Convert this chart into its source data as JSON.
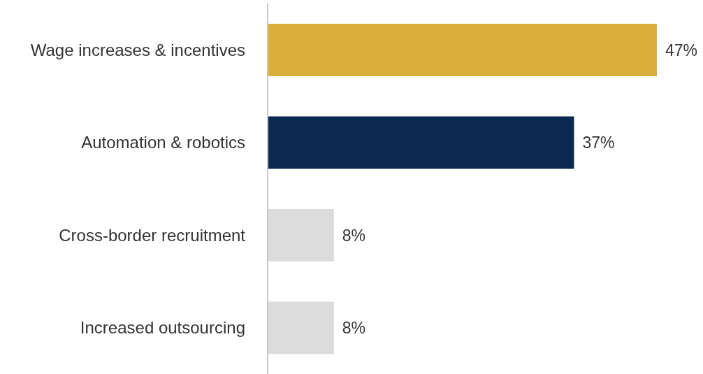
{
  "chart_data": {
    "type": "bar",
    "orientation": "horizontal",
    "categories": [
      "Wage increases & incentives",
      "Automation & robotics",
      "Cross-border recruitment",
      "Increased outsourcing"
    ],
    "values": [
      47,
      37,
      8,
      8
    ],
    "colors": [
      "#d9ae3c",
      "#0c2a50",
      "#dcdcdc",
      "#dcdcdc"
    ],
    "value_labels": [
      "47%",
      "37%",
      "8%",
      "8%"
    ]
  }
}
